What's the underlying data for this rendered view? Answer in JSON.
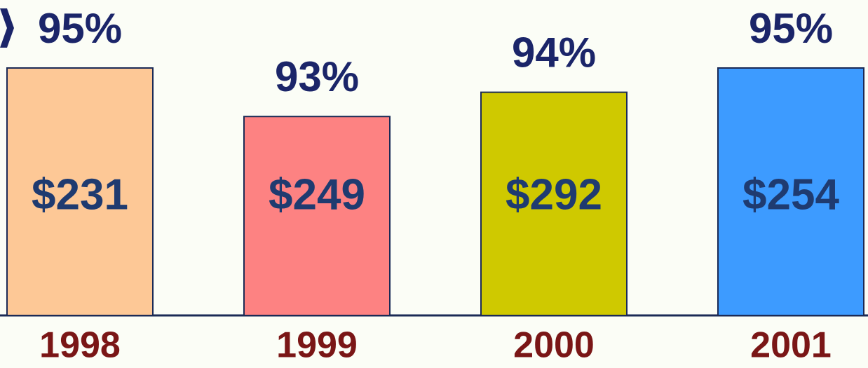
{
  "chart_data": {
    "type": "bar",
    "categories": [
      "1998",
      "1999",
      "2000",
      "2001"
    ],
    "values": [
      95,
      93,
      94,
      95
    ],
    "value_labels": [
      "95%",
      "93%",
      "94%",
      "95%"
    ],
    "amounts": [
      231,
      249,
      292,
      254
    ],
    "amount_labels": [
      "$231",
      "$249",
      "$292",
      "$254"
    ],
    "colors": [
      "#fdc896",
      "#fd8282",
      "#cfc900",
      "#3d9bff"
    ],
    "ylim": [
      84.8,
      95
    ]
  }
}
